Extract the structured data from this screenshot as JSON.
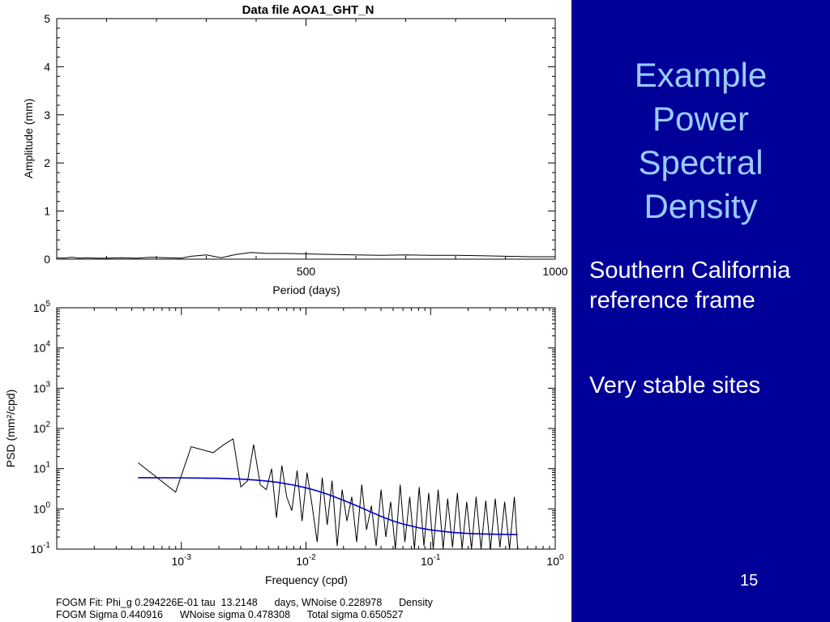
{
  "slide": {
    "title_lines": [
      "Example",
      "Power",
      "Spectral",
      "Density"
    ],
    "bullets": [
      "Southern California reference frame",
      "Very stable sites"
    ],
    "page_number": "15",
    "colors": {
      "panel_bg": "#000099",
      "title": "#99ccff",
      "bullet_text": "#ffffff",
      "fit_line": "#0000cc"
    }
  },
  "fit_summary": {
    "line1": "FOGM Fit: Phi_g 0.294226E-01 tau  13.2148      days, WNoise 0.228978      Density",
    "line2": "FOGM Sigma 0.440916      WNoise sigma 0.478308      Total sigma 0.650527"
  },
  "chart_data": [
    {
      "type": "line",
      "title": "Data file AOA1_GHT_N",
      "xlabel": "Period (days)",
      "ylabel": "Amplitude (mm)",
      "xlim": [
        0,
        1000
      ],
      "ylim": [
        0,
        5
      ],
      "xticks": [
        "500",
        "1000"
      ],
      "yticks": [
        "0",
        "1",
        "2",
        "3",
        "4",
        "5"
      ],
      "grid": false,
      "series": [
        {
          "x": [
            0,
            15,
            30,
            45,
            60,
            80,
            100,
            130,
            160,
            190,
            220,
            250,
            270,
            300,
            330,
            360,
            390,
            420,
            460,
            500,
            550,
            600,
            650,
            700,
            750,
            800,
            850,
            900,
            950,
            1000
          ],
          "values": [
            0.03,
            0.02,
            0.04,
            0.02,
            0.03,
            0.02,
            0.02,
            0.03,
            0.02,
            0.04,
            0.03,
            0.02,
            0.06,
            0.09,
            0.03,
            0.1,
            0.14,
            0.12,
            0.12,
            0.11,
            0.1,
            0.09,
            0.08,
            0.09,
            0.08,
            0.08,
            0.07,
            0.06,
            0.05,
            0.05
          ]
        }
      ]
    },
    {
      "type": "line",
      "xlabel": "Frequency (cpd)",
      "ylabel": "PSD (mm²/cpd)",
      "xscale": "log",
      "yscale": "log",
      "xlim": [
        0.0001,
        1
      ],
      "ylim": [
        0.1,
        100000
      ],
      "xticks": [
        {
          "base": "10",
          "exp": "-3"
        },
        {
          "base": "10",
          "exp": "-2"
        },
        {
          "base": "10",
          "exp": "-1"
        },
        {
          "base": "10",
          "exp": "0"
        }
      ],
      "yticks": [
        {
          "base": "10",
          "exp": "-1"
        },
        {
          "base": "10",
          "exp": "0"
        },
        {
          "base": "10",
          "exp": "1"
        },
        {
          "base": "10",
          "exp": "2"
        },
        {
          "base": "10",
          "exp": "3"
        },
        {
          "base": "10",
          "exp": "4"
        },
        {
          "base": "10",
          "exp": "5"
        }
      ],
      "grid": false,
      "series": [
        {
          "color": "#000000",
          "x": [
            0.00045,
            0.0009,
            0.0012,
            0.0018,
            0.0022,
            0.0026,
            0.003,
            0.0034,
            0.0038,
            0.0043,
            0.0048,
            0.0053,
            0.0058,
            0.0064,
            0.007,
            0.0077,
            0.0085,
            0.0093,
            0.0102,
            0.0112,
            0.0123,
            0.0135,
            0.0148,
            0.0162,
            0.0178,
            0.0195,
            0.0213,
            0.0233,
            0.0255,
            0.028,
            0.0306,
            0.0335,
            0.0366,
            0.04,
            0.0437,
            0.0478,
            0.0522,
            0.057,
            0.0622,
            0.068,
            0.0742,
            0.081,
            0.0884,
            0.0965,
            0.105,
            0.115,
            0.126,
            0.137,
            0.15,
            0.164,
            0.179,
            0.195,
            0.213,
            0.232,
            0.254,
            0.277,
            0.302,
            0.33,
            0.36,
            0.393,
            0.43,
            0.47,
            0.5
          ],
          "values": [
            14,
            2.6,
            35,
            25,
            40,
            55,
            3.5,
            5,
            40,
            4,
            3,
            10,
            0.6,
            12,
            2,
            0.9,
            9,
            0.5,
            8,
            1.2,
            0.15,
            6,
            0.4,
            5,
            0.12,
            3,
            0.5,
            2,
            0.15,
            4,
            0.3,
            1.2,
            0.12,
            3,
            0.2,
            1.5,
            0.1,
            4,
            0.15,
            2,
            0.1,
            3.5,
            0.12,
            2.5,
            0.1,
            3,
            0.1,
            1.8,
            0.11,
            2.5,
            0.1,
            1.5,
            0.1,
            2,
            0.1,
            1.6,
            0.1,
            1.8,
            0.11,
            1.5,
            0.1,
            2,
            0.1
          ]
        },
        {
          "color": "#0000cc",
          "x": [
            0.00045,
            0.001,
            0.002,
            0.003,
            0.004,
            0.005,
            0.006,
            0.008,
            0.01,
            0.012,
            0.015,
            0.02,
            0.025,
            0.03,
            0.04,
            0.05,
            0.06,
            0.08,
            0.1,
            0.15,
            0.2,
            0.3,
            0.5
          ],
          "values": [
            5.97,
            5.92,
            5.75,
            5.5,
            5.2,
            4.87,
            4.54,
            3.9,
            3.34,
            2.87,
            2.3,
            1.64,
            1.23,
            0.96,
            0.65,
            0.5,
            0.42,
            0.34,
            0.3,
            0.26,
            0.245,
            0.235,
            0.23
          ]
        }
      ]
    }
  ]
}
